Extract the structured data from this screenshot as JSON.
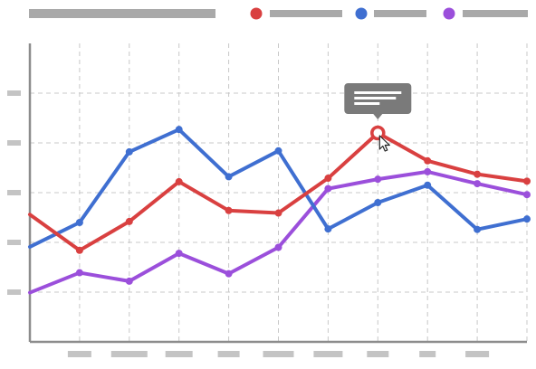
{
  "chart_data": {
    "type": "line",
    "grid": true,
    "legend_position": "top-right",
    "title": "",
    "xlabel": "",
    "ylabel": "",
    "x": [
      0,
      1,
      2,
      3,
      4,
      5,
      6,
      7,
      8,
      9,
      10
    ],
    "xlim": [
      0,
      10
    ],
    "ylim": [
      0,
      6
    ],
    "y_ticks": [
      1,
      2,
      3,
      4,
      5
    ],
    "series": [
      {
        "color": "#d94040",
        "values": [
          2.56,
          1.84,
          2.42,
          3.22,
          2.64,
          2.59,
          3.29,
          4.2,
          3.64,
          3.37,
          3.23
        ]
      },
      {
        "color": "#3f6fd1",
        "values": [
          1.91,
          2.4,
          3.82,
          4.27,
          3.32,
          3.84,
          2.27,
          2.8,
          3.15,
          2.26,
          2.47
        ]
      },
      {
        "color": "#9b4fdb",
        "values": [
          0.99,
          1.39,
          1.22,
          1.78,
          1.37,
          1.9,
          3.08,
          3.27,
          3.42,
          3.18,
          2.96
        ]
      }
    ],
    "highlight": {
      "series_index": 0,
      "point_index": 7
    }
  },
  "icons": {
    "tooltip": "tooltip-bubble",
    "cursor": "mouse-pointer-icon"
  }
}
